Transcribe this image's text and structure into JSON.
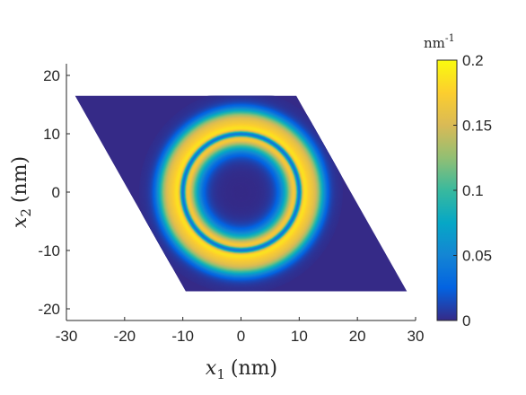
{
  "chart_data": {
    "type": "heatmap",
    "title": "",
    "xlabel": "x_1 (nm)",
    "ylabel": "x_2 (nm)",
    "xlabel_parts": {
      "var": "x",
      "sub": "1",
      "unit": "(nm)"
    },
    "ylabel_parts": {
      "var": "x",
      "sub": "2",
      "unit": "(nm)"
    },
    "xlim": [
      -30,
      30
    ],
    "ylim": [
      -22,
      22
    ],
    "xticks": [
      -30,
      -20,
      -10,
      0,
      10,
      20,
      30
    ],
    "xtick_labels": [
      "-30",
      "-20",
      "-10",
      "0",
      "10",
      "20",
      "30"
    ],
    "yticks": [
      -20,
      -10,
      0,
      10,
      20
    ],
    "ytick_labels": [
      "-20",
      "-10",
      "0",
      "10",
      "20"
    ],
    "grid": false,
    "domain_shape": "rhombus",
    "domain_vertices": [
      [
        -28.5,
        16.5
      ],
      [
        9.5,
        16.5
      ],
      [
        28.5,
        -17
      ],
      [
        -9.5,
        -17
      ]
    ],
    "field": {
      "description": "concentric ring pattern centered at origin",
      "center": [
        0,
        0
      ],
      "background_value": 0.0,
      "peak_value": 0.2,
      "inner_ring": {
        "radius": 10.0,
        "width": 0.55,
        "value": 0.04
      },
      "main_ring": {
        "radius": 10.0,
        "width": 2.4,
        "peak": 0.175
      },
      "outer_halo": {
        "radius": 13.0,
        "width": 1.5,
        "peak": 0.085
      }
    },
    "colorbar": {
      "colormap": "parula",
      "range": [
        0,
        0.2
      ],
      "ticks": [
        0,
        0.05,
        0.1,
        0.15,
        0.2
      ],
      "tick_labels": [
        "0",
        "0.05",
        "0.1",
        "0.15",
        "0.2"
      ],
      "unit_base": "nm",
      "unit_exp": "-1"
    }
  }
}
